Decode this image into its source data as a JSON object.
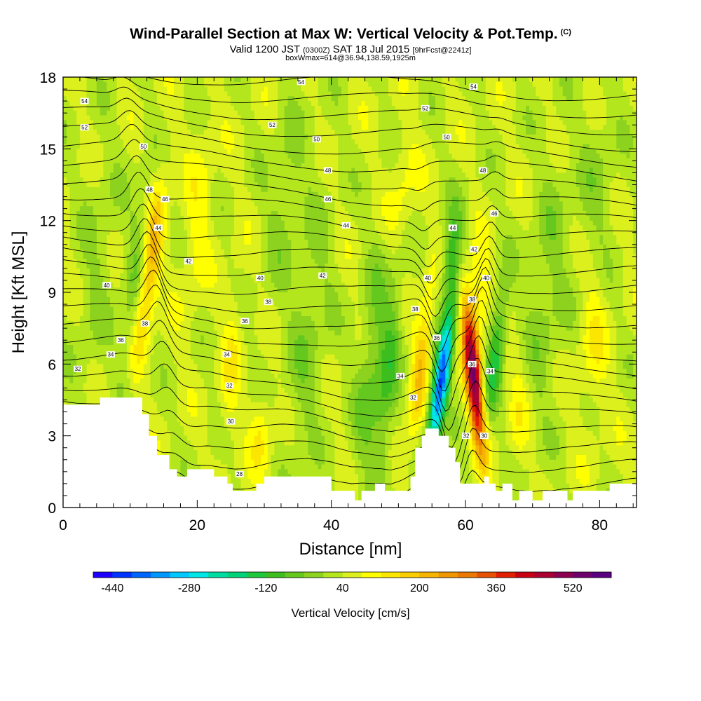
{
  "chart_data": {
    "type": "heatmap",
    "title": "Wind-Parallel Section at Max W: Vertical Velocity & Pot.Temp.",
    "title_mark": "(C)",
    "subtitle_main": "Valid 1200 JST",
    "subtitle_utc": "(0300Z)",
    "subtitle_date": "SAT 18 Jul 2015",
    "subtitle_fcst": "[9hrFcst@2241z]",
    "subtitle2": "boxWmax=614@36.94,138.59,1925m",
    "xlabel": "Distance [nm]",
    "ylabel": "Height [Kft MSL]",
    "xlim": [
      0,
      85.5
    ],
    "ylim": [
      0,
      18
    ],
    "x_ticks": [
      0,
      20,
      40,
      60,
      80
    ],
    "y_ticks": [
      0,
      3,
      6,
      9,
      12,
      15,
      18
    ],
    "colorbar": {
      "title": "Vertical Velocity [cm/s]",
      "min": -480,
      "max": 600,
      "step": 40,
      "labels": [
        -440,
        -280,
        -120,
        40,
        200,
        360,
        520
      ],
      "colors": [
        "#1e00ff",
        "#0032ff",
        "#0064ff",
        "#0096ff",
        "#00c8ff",
        "#00e6e6",
        "#00dca0",
        "#00d278",
        "#1ec83c",
        "#3cbe1e",
        "#64c81e",
        "#8cd21e",
        "#b4e61e",
        "#dcf01e",
        "#ffff00",
        "#fae600",
        "#facd00",
        "#f5b400",
        "#f09600",
        "#eb7800",
        "#e65000",
        "#e11e00",
        "#c80014",
        "#aa0032",
        "#8c0050",
        "#6e006e",
        "#5a0082"
      ]
    },
    "terrain_kft": [
      [
        0,
        4.3
      ],
      [
        5.5,
        4.3
      ],
      [
        5.5,
        4.6
      ],
      [
        11.8,
        4.6
      ],
      [
        11.8,
        3.9
      ],
      [
        12.8,
        3.9
      ],
      [
        12.8,
        3.0
      ],
      [
        14,
        3.0
      ],
      [
        14,
        2.2
      ],
      [
        15.8,
        2.2
      ],
      [
        15.8,
        1.6
      ],
      [
        17,
        1.6
      ],
      [
        17,
        1.3
      ],
      [
        18.5,
        1.3
      ],
      [
        18.5,
        1.6
      ],
      [
        22.5,
        1.6
      ],
      [
        22.5,
        1.3
      ],
      [
        24.5,
        1.3
      ],
      [
        24.5,
        1.0
      ],
      [
        25.3,
        1.0
      ],
      [
        25.3,
        0.7
      ],
      [
        28.8,
        0.7
      ],
      [
        28.8,
        1.0
      ],
      [
        30,
        1.0
      ],
      [
        30,
        1.3
      ],
      [
        40,
        1.3
      ],
      [
        40,
        0.7
      ],
      [
        43.5,
        0.7
      ],
      [
        43.5,
        0.3
      ],
      [
        44.5,
        0.3
      ],
      [
        44.5,
        0.7
      ],
      [
        46.5,
        0.7
      ],
      [
        46.5,
        1.0
      ],
      [
        48,
        1.0
      ],
      [
        48,
        0.7
      ],
      [
        51.8,
        0.7
      ],
      [
        51.8,
        1.3
      ],
      [
        52.5,
        1.3
      ],
      [
        52.5,
        2.5
      ],
      [
        53.5,
        2.5
      ],
      [
        53.5,
        3.0
      ],
      [
        54,
        3.0
      ],
      [
        54,
        3.3
      ],
      [
        56,
        3.3
      ],
      [
        56,
        3.0
      ],
      [
        57.5,
        3.0
      ],
      [
        57.5,
        2.5
      ],
      [
        58.5,
        2.5
      ],
      [
        58.5,
        1.9
      ],
      [
        59.2,
        1.9
      ],
      [
        59.2,
        1.0
      ],
      [
        62.8,
        1.0
      ],
      [
        62.8,
        1.3
      ],
      [
        63.5,
        1.3
      ],
      [
        63.5,
        1.0
      ],
      [
        64.5,
        1.0
      ],
      [
        64.5,
        0.7
      ],
      [
        65.5,
        0.7
      ],
      [
        65.5,
        1.0
      ],
      [
        67,
        1.0
      ],
      [
        67,
        0.3
      ],
      [
        68,
        0.3
      ],
      [
        68,
        0.7
      ],
      [
        70,
        0.7
      ],
      [
        70,
        0.3
      ],
      [
        71.5,
        0.3
      ],
      [
        71.5,
        0.7
      ],
      [
        75.2,
        0.7
      ],
      [
        75.2,
        0.3
      ],
      [
        76,
        0.3
      ],
      [
        76,
        0.7
      ],
      [
        81.5,
        0.7
      ],
      [
        81.5,
        1.0
      ],
      [
        85.5,
        1.0
      ]
    ],
    "features": [
      {
        "x": 13.0,
        "y": 10.0,
        "value": 180,
        "sigma_x": 1.0,
        "sigma_y": 2.5,
        "tilt": 0.45
      },
      {
        "x": 10.5,
        "y": 9.5,
        "value": -70,
        "sigma_x": 1.1,
        "sigma_y": 3.0,
        "tilt": 0.4
      },
      {
        "x": 56.3,
        "y": 5.2,
        "value": -440,
        "sigma_x": 0.85,
        "sigma_y": 2.1,
        "tilt": 0.5
      },
      {
        "x": 61.2,
        "y": 5.5,
        "value": 470,
        "sigma_x": 0.85,
        "sigma_y": 2.3,
        "tilt": -0.35
      },
      {
        "x": 53.3,
        "y": 6.0,
        "value": 150,
        "sigma_x": 0.9,
        "sigma_y": 2.3,
        "tilt": 0.4
      },
      {
        "x": 64.5,
        "y": 6.5,
        "value": -170,
        "sigma_x": 0.9,
        "sigma_y": 2.0,
        "tilt": 0.4
      },
      {
        "x": 58.0,
        "y": 10.5,
        "value": -160,
        "sigma_x": 1.0,
        "sigma_y": 1.5,
        "tilt": 0.3
      },
      {
        "x": 62.0,
        "y": 9.0,
        "value": 110,
        "sigma_x": 1.0,
        "sigma_y": 1.3,
        "tilt": 0.0
      },
      {
        "x": 46.0,
        "y": 6.0,
        "value": -90,
        "sigma_x": 1.5,
        "sigma_y": 3.5,
        "tilt": 0.3
      },
      {
        "x": 48.5,
        "y": 5.5,
        "value": -110,
        "sigma_x": 1.1,
        "sigma_y": 3.2,
        "tilt": 0.3
      },
      {
        "x": 20.0,
        "y": 12.0,
        "value": 60,
        "sigma_x": 1.5,
        "sigma_y": 3.0,
        "tilt": 0.3
      },
      {
        "x": 25.0,
        "y": 6.0,
        "value": 70,
        "sigma_x": 1.0,
        "sigma_y": 2.5,
        "tilt": 0.2
      },
      {
        "x": 29.5,
        "y": 3.0,
        "value": 80,
        "sigma_x": 1.2,
        "sigma_y": 1.3,
        "tilt": 0.0
      },
      {
        "x": 36.5,
        "y": 7.0,
        "value": -60,
        "sigma_x": 2.0,
        "sigma_y": 4.0,
        "tilt": 0.3
      },
      {
        "x": 33.0,
        "y": 13.0,
        "value": -50,
        "sigma_x": 2.0,
        "sigma_y": 3.0,
        "tilt": 0.3
      },
      {
        "x": 72.0,
        "y": 9.0,
        "value": -60,
        "sigma_x": 2.0,
        "sigma_y": 4.0,
        "tilt": 0.3
      },
      {
        "x": 79.0,
        "y": 7.0,
        "value": 70,
        "sigma_x": 1.5,
        "sigma_y": 2.5,
        "tilt": 0.0
      },
      {
        "x": 79.5,
        "y": 13.0,
        "value": -50,
        "sigma_x": 2.0,
        "sigma_y": 3.0,
        "tilt": 0.3
      },
      {
        "x": 5.0,
        "y": 10.0,
        "value": -40,
        "sigma_x": 2.0,
        "sigma_y": 4.0,
        "tilt": 0.3
      },
      {
        "x": 68.0,
        "y": 4.0,
        "value": 60,
        "sigma_x": 1.2,
        "sigma_y": 1.8,
        "tilt": 0.0
      },
      {
        "x": 50.5,
        "y": 13.0,
        "value": 60,
        "sigma_x": 1.5,
        "sigma_y": 2.0,
        "tilt": 0.3
      }
    ],
    "background_value": 40,
    "isentropes": {
      "min": 28,
      "max": 55,
      "step": 1,
      "labeled": [
        {
          "value": 54,
          "x": 3.2,
          "y": 17.0
        },
        {
          "value": 54,
          "x": 35.5,
          "y": 17.8
        },
        {
          "value": 54,
          "x": 61.2,
          "y": 17.6
        },
        {
          "value": 52,
          "x": 3.2,
          "y": 15.9
        },
        {
          "value": 52,
          "x": 31.2,
          "y": 16.0
        },
        {
          "value": 52,
          "x": 54.0,
          "y": 16.7
        },
        {
          "value": 50,
          "x": 12.0,
          "y": 15.1
        },
        {
          "value": 50,
          "x": 37.8,
          "y": 15.4
        },
        {
          "value": 50,
          "x": 57.2,
          "y": 15.5
        },
        {
          "value": 48,
          "x": 12.9,
          "y": 13.3
        },
        {
          "value": 48,
          "x": 39.5,
          "y": 14.1
        },
        {
          "value": 48,
          "x": 62.6,
          "y": 14.1
        },
        {
          "value": 46,
          "x": 15.2,
          "y": 12.9
        },
        {
          "value": 46,
          "x": 39.5,
          "y": 12.9
        },
        {
          "value": 46,
          "x": 64.3,
          "y": 12.3
        },
        {
          "value": 44,
          "x": 14.2,
          "y": 11.7
        },
        {
          "value": 44,
          "x": 42.2,
          "y": 11.8
        },
        {
          "value": 44,
          "x": 58.1,
          "y": 11.7
        },
        {
          "value": 42,
          "x": 18.7,
          "y": 10.3
        },
        {
          "value": 42,
          "x": 38.7,
          "y": 9.7
        },
        {
          "value": 42,
          "x": 61.3,
          "y": 10.8
        },
        {
          "value": 40,
          "x": 6.5,
          "y": 9.3
        },
        {
          "value": 40,
          "x": 29.4,
          "y": 9.6
        },
        {
          "value": 40,
          "x": 54.4,
          "y": 9.6
        },
        {
          "value": 40,
          "x": 63.1,
          "y": 9.6
        },
        {
          "value": 38,
          "x": 12.2,
          "y": 7.7
        },
        {
          "value": 38,
          "x": 30.6,
          "y": 8.6
        },
        {
          "value": 38,
          "x": 52.5,
          "y": 8.3
        },
        {
          "value": 38,
          "x": 61.0,
          "y": 8.7
        },
        {
          "value": 36,
          "x": 8.6,
          "y": 7.0
        },
        {
          "value": 36,
          "x": 27.1,
          "y": 7.8
        },
        {
          "value": 36,
          "x": 55.7,
          "y": 7.1
        },
        {
          "value": 36,
          "x": 61.0,
          "y": 6.0
        },
        {
          "value": 34,
          "x": 7.1,
          "y": 6.4
        },
        {
          "value": 34,
          "x": 24.4,
          "y": 6.4
        },
        {
          "value": 34,
          "x": 50.3,
          "y": 5.5
        },
        {
          "value": 34,
          "x": 63.7,
          "y": 5.7
        },
        {
          "value": 32,
          "x": 2.2,
          "y": 5.8
        },
        {
          "value": 32,
          "x": 24.8,
          "y": 5.1
        },
        {
          "value": 32,
          "x": 52.2,
          "y": 4.6
        },
        {
          "value": 32,
          "x": 60.1,
          "y": 3.0
        },
        {
          "value": 30,
          "x": 25.0,
          "y": 3.6
        },
        {
          "value": 30,
          "x": 62.8,
          "y": 3.0
        },
        {
          "value": 28,
          "x": 26.3,
          "y": 1.4
        }
      ]
    }
  }
}
